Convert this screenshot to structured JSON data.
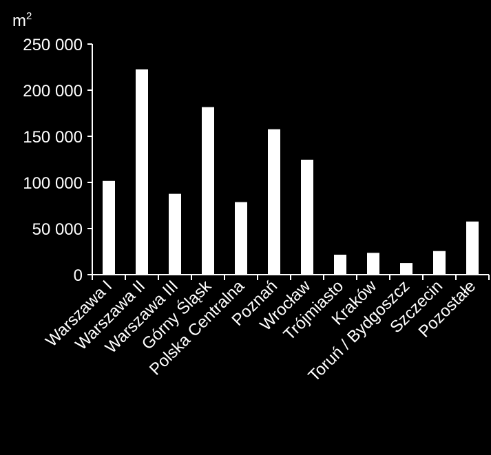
{
  "chart_data": {
    "type": "bar",
    "unit_label": "m",
    "unit_superscript": "2",
    "categories": [
      "Warszawa I",
      "Warszawa II",
      "Warszawa III",
      "Górny Śląsk",
      "Polska Centralna",
      "Poznań",
      "Wrocław",
      "Trójmiasto",
      "Kraków",
      "Toruń / Bydgoszcz",
      "Szczecin",
      "Pozostałe"
    ],
    "values": [
      102000,
      223000,
      88000,
      182000,
      79000,
      158000,
      125000,
      22000,
      24000,
      13000,
      26000,
      58000
    ],
    "ylim": [
      0,
      250000
    ],
    "yticks": [
      0,
      50000,
      100000,
      150000,
      200000,
      250000
    ],
    "ytick_labels": [
      "0",
      "50 000",
      "100 000",
      "150 000",
      "200 000",
      "250 000"
    ],
    "grid": false,
    "legend": "none",
    "colors": {
      "background": "#000000",
      "bar": "#ffffff",
      "axis": "#ffffff",
      "text": "#ffffff"
    }
  }
}
